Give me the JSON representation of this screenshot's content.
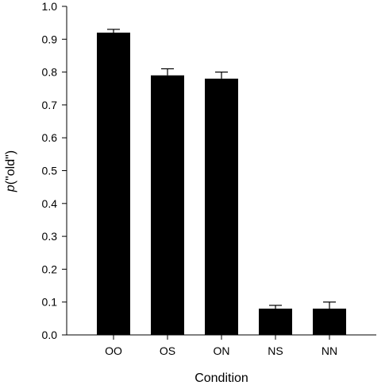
{
  "chart_data": {
    "type": "bar",
    "categories": [
      "OO",
      "OS",
      "ON",
      "NS",
      "NN"
    ],
    "values": [
      0.92,
      0.79,
      0.78,
      0.08,
      0.08
    ],
    "errors": [
      0.01,
      0.02,
      0.02,
      0.01,
      0.02
    ],
    "xlabel": "Condition",
    "ylabel_italic": "p",
    "ylabel_rest": "(\"old\")",
    "ylim": [
      0,
      1.0
    ],
    "yticks": [
      "0.0",
      "0.1",
      "0.2",
      "0.3",
      "0.4",
      "0.5",
      "0.6",
      "0.7",
      "0.8",
      "0.9",
      "1.0"
    ],
    "ytick_values": [
      0,
      0.1,
      0.2,
      0.3,
      0.4,
      0.5,
      0.6,
      0.7,
      0.8,
      0.9,
      1.0
    ],
    "grid": false,
    "bar_color": "#000000"
  }
}
